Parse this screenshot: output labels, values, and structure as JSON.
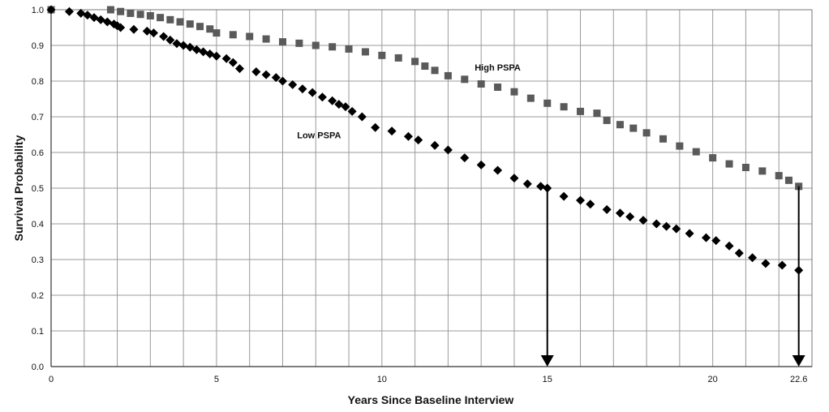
{
  "chart_data": {
    "type": "scatter",
    "title": "",
    "xlabel": "Years Since Baseline Interview",
    "ylabel": "Survival Probability",
    "xlim": [
      0,
      23
    ],
    "ylim": [
      0,
      1.0
    ],
    "grid": true,
    "x_ticks": [
      0,
      5,
      10,
      15,
      20,
      22.6
    ],
    "x_tick_labels": [
      "0",
      "5",
      "10",
      "15",
      "20",
      "22.6"
    ],
    "y_ticks": [
      0,
      0.1,
      0.2,
      0.3,
      0.4,
      0.5,
      0.6,
      0.7,
      0.8,
      0.9,
      1.0
    ],
    "y_tick_labels": [
      "0.0",
      "0.1",
      "0.2",
      "0.3",
      "0.4",
      "0.5",
      "0.6",
      "0.7",
      "0.8",
      "0.9",
      "1.0"
    ],
    "series": [
      {
        "name": "High PSPA",
        "marker": "square",
        "color": "#5a5a5a",
        "x": [
          0,
          1.8,
          2.1,
          2.4,
          2.7,
          3.0,
          3.3,
          3.6,
          3.9,
          4.2,
          4.5,
          4.8,
          5.0,
          5.5,
          6.0,
          6.5,
          7.0,
          7.5,
          8.0,
          8.5,
          9.0,
          9.5,
          10.0,
          10.5,
          11.0,
          11.3,
          11.6,
          12.0,
          12.5,
          13.0,
          13.5,
          14.0,
          14.5,
          15.0,
          15.5,
          16.0,
          16.5,
          16.8,
          17.2,
          17.6,
          18.0,
          18.5,
          19.0,
          19.5,
          20.0,
          20.5,
          21.0,
          21.5,
          22.0,
          22.3,
          22.6
        ],
        "y": [
          1.0,
          1.0,
          0.995,
          0.99,
          0.987,
          0.983,
          0.978,
          0.972,
          0.966,
          0.96,
          0.953,
          0.946,
          0.935,
          0.93,
          0.925,
          0.918,
          0.91,
          0.906,
          0.9,
          0.896,
          0.89,
          0.882,
          0.872,
          0.865,
          0.855,
          0.842,
          0.83,
          0.815,
          0.805,
          0.792,
          0.783,
          0.77,
          0.752,
          0.738,
          0.728,
          0.715,
          0.71,
          0.69,
          0.678,
          0.668,
          0.655,
          0.638,
          0.618,
          0.602,
          0.585,
          0.568,
          0.558,
          0.548,
          0.535,
          0.522,
          0.505
        ]
      },
      {
        "name": "Low PSPA",
        "marker": "diamond",
        "color": "#000000",
        "x": [
          0,
          0.55,
          0.9,
          1.1,
          1.3,
          1.5,
          1.7,
          1.9,
          2.0,
          2.1,
          2.5,
          2.9,
          3.1,
          3.4,
          3.6,
          3.8,
          4.0,
          4.2,
          4.4,
          4.6,
          4.8,
          5.0,
          5.3,
          5.5,
          5.7,
          6.2,
          6.5,
          6.8,
          7.0,
          7.3,
          7.6,
          7.9,
          8.2,
          8.5,
          8.7,
          8.9,
          9.1,
          9.4,
          9.8,
          10.3,
          10.8,
          11.1,
          11.6,
          12.0,
          12.5,
          13.0,
          13.5,
          14.0,
          14.4,
          14.8,
          15.0,
          15.5,
          16.0,
          16.3,
          16.8,
          17.2,
          17.5,
          17.9,
          18.3,
          18.6,
          18.9,
          19.3,
          19.8,
          20.1,
          20.5,
          20.8,
          21.2,
          21.6,
          22.1,
          22.6
        ],
        "y": [
          1.0,
          0.995,
          0.99,
          0.985,
          0.978,
          0.972,
          0.966,
          0.96,
          0.955,
          0.95,
          0.945,
          0.94,
          0.935,
          0.925,
          0.915,
          0.905,
          0.9,
          0.895,
          0.888,
          0.882,
          0.876,
          0.87,
          0.863,
          0.852,
          0.835,
          0.826,
          0.818,
          0.81,
          0.8,
          0.79,
          0.778,
          0.768,
          0.755,
          0.745,
          0.735,
          0.728,
          0.715,
          0.7,
          0.67,
          0.66,
          0.645,
          0.635,
          0.62,
          0.607,
          0.585,
          0.565,
          0.55,
          0.528,
          0.512,
          0.505,
          0.5,
          0.477,
          0.466,
          0.455,
          0.44,
          0.43,
          0.42,
          0.41,
          0.4,
          0.393,
          0.386,
          0.373,
          0.361,
          0.353,
          0.338,
          0.318,
          0.305,
          0.289,
          0.284,
          0.27
        ]
      }
    ],
    "annotations": [
      {
        "text": "High PSPA",
        "x": 13.5,
        "y": 0.83
      },
      {
        "text": "Low PSPA",
        "x": 8.1,
        "y": 0.64
      }
    ],
    "arrows": [
      {
        "x": 15,
        "from_y": 0.5,
        "to_y": 0
      },
      {
        "x": 22.6,
        "from_y": 0.505,
        "to_y": 0
      }
    ]
  }
}
